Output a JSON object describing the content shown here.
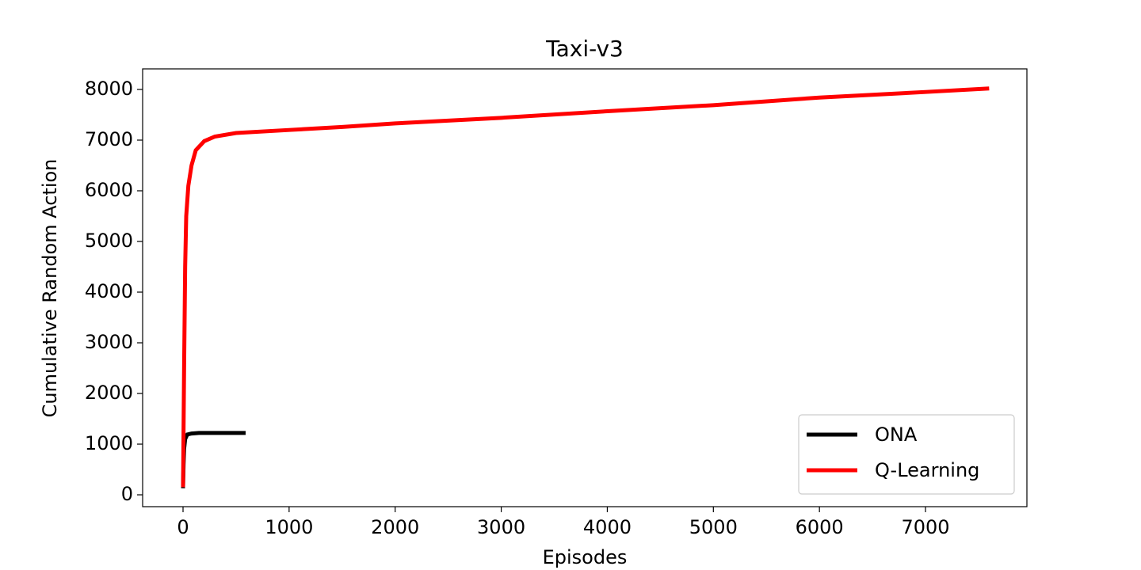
{
  "chart_data": {
    "type": "line",
    "title": "Taxi-v3",
    "x_label": "Episodes",
    "y_label": "Cumulative Random Action",
    "xlim": [
      -381,
      7956
    ],
    "ylim": [
      -234,
      8406
    ],
    "xticks": [
      0,
      1000,
      2000,
      3000,
      4000,
      5000,
      6000,
      7000
    ],
    "yticks": [
      0,
      1000,
      2000,
      3000,
      4000,
      5000,
      6000,
      7000,
      8000
    ],
    "grid": false,
    "legend": "lower right",
    "series": [
      {
        "name": "ONA",
        "color": "#000000",
        "x": [
          0,
          5,
          10,
          20,
          40,
          80,
          150,
          590
        ],
        "values": [
          130,
          600,
          900,
          1100,
          1190,
          1210,
          1220,
          1220
        ]
      },
      {
        "name": "Q-Learning",
        "color": "#ff0000",
        "x": [
          0,
          10,
          20,
          30,
          50,
          80,
          120,
          200,
          300,
          500,
          1000,
          1500,
          2000,
          3000,
          4000,
          5000,
          6000,
          7000,
          7600
        ],
        "values": [
          150,
          2500,
          4500,
          5500,
          6100,
          6500,
          6800,
          6980,
          7070,
          7140,
          7200,
          7260,
          7330,
          7440,
          7570,
          7690,
          7840,
          7950,
          8020
        ]
      }
    ]
  }
}
